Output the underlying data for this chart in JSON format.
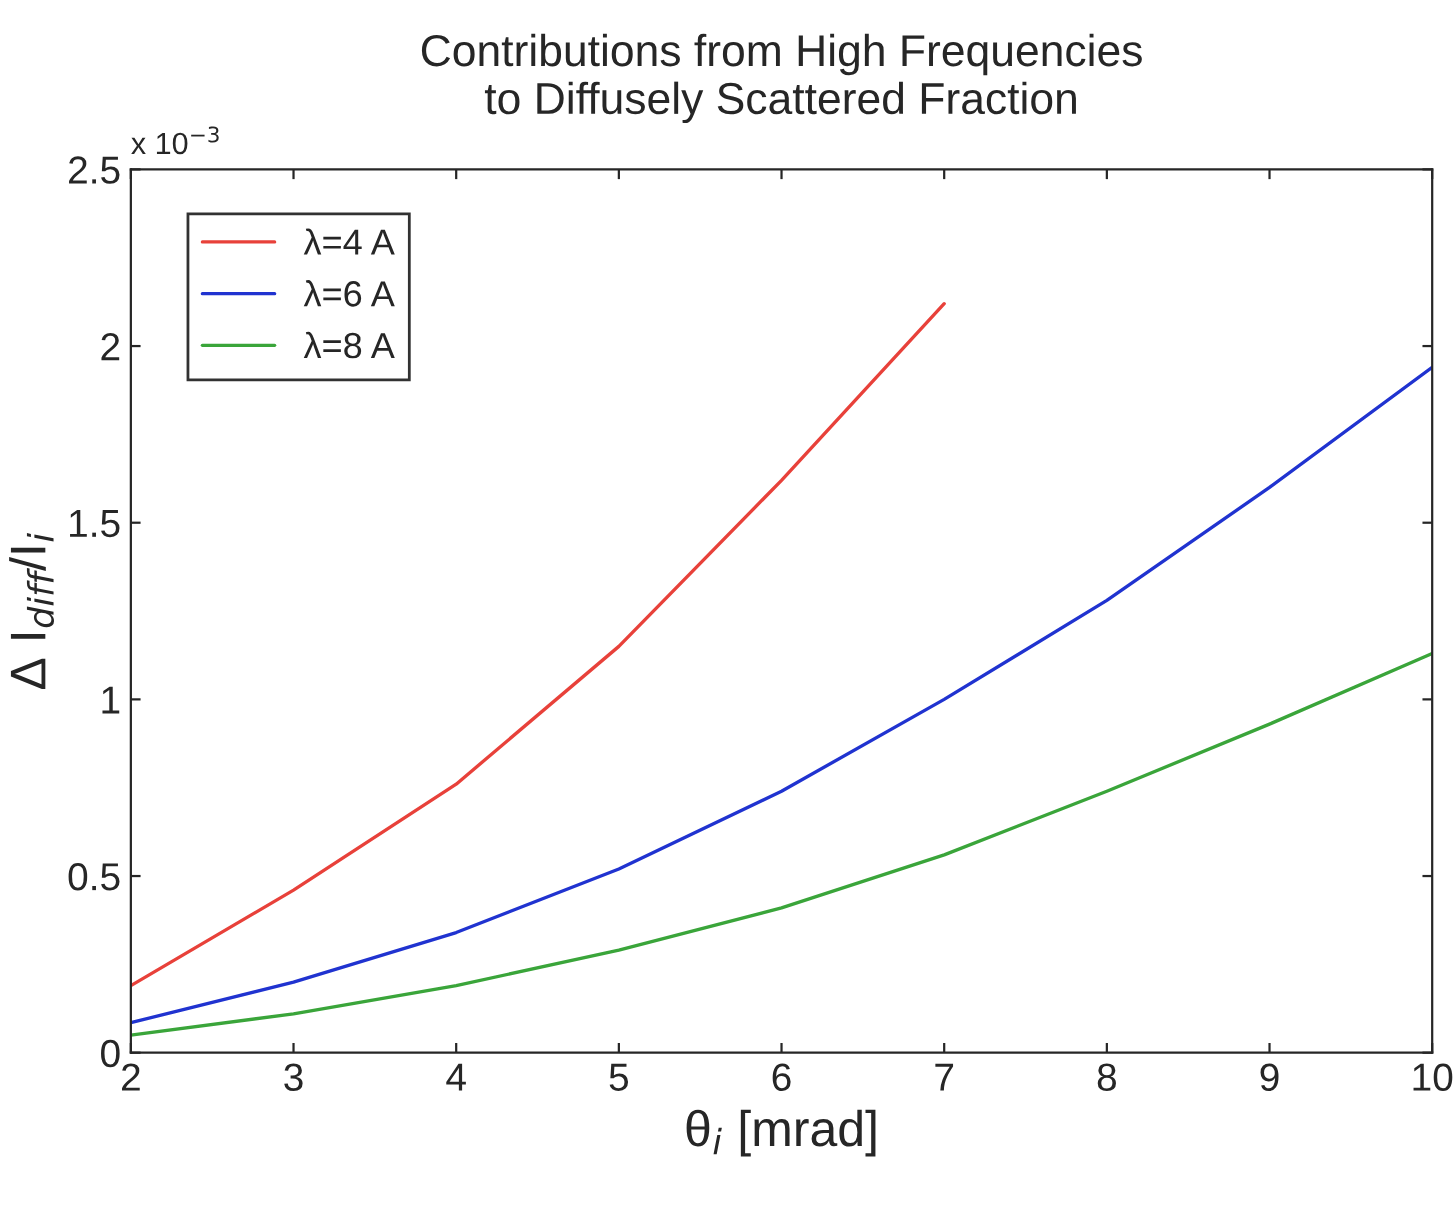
{
  "chart_data": {
    "type": "line",
    "title": "Contributions from High Frequencies\nto Diffusely Scattered Fraction",
    "xlabel": "θ$_{i}$ [mrad]",
    "ylabel": "Δ I$_{diff}$/I$_{i}$",
    "annotations": [
      "x 10$^{−3}$"
    ],
    "series": [
      {
        "name": "λ=4 A",
        "color": "#e8413a",
        "x": [
          2,
          3,
          4,
          5,
          6,
          7
        ],
        "values": [
          0.19,
          0.46,
          0.76,
          1.15,
          1.62,
          2.12
        ]
      },
      {
        "name": "λ=6 A",
        "color": "#2033d0",
        "x": [
          2,
          3,
          4,
          5,
          6,
          7,
          8,
          9,
          10
        ],
        "values": [
          0.085,
          0.2,
          0.34,
          0.52,
          0.74,
          1.0,
          1.28,
          1.6,
          1.94
        ]
      },
      {
        "name": "λ=8 A",
        "color": "#3aa53a",
        "x": [
          2,
          3,
          4,
          5,
          6,
          7,
          8,
          9,
          10
        ],
        "values": [
          0.05,
          0.11,
          0.19,
          0.29,
          0.41,
          0.56,
          0.74,
          0.93,
          1.13
        ]
      }
    ],
    "xlim": [
      2,
      10
    ],
    "xticks": [
      2,
      3,
      4,
      5,
      6,
      7,
      8,
      9,
      10
    ],
    "ylim": [
      0,
      2.5
    ],
    "yticks": [
      0,
      0.5,
      1,
      1.5,
      2,
      2.5
    ],
    "legend": "top left",
    "marker": "none",
    "line_style": "solid",
    "grid": false
  }
}
